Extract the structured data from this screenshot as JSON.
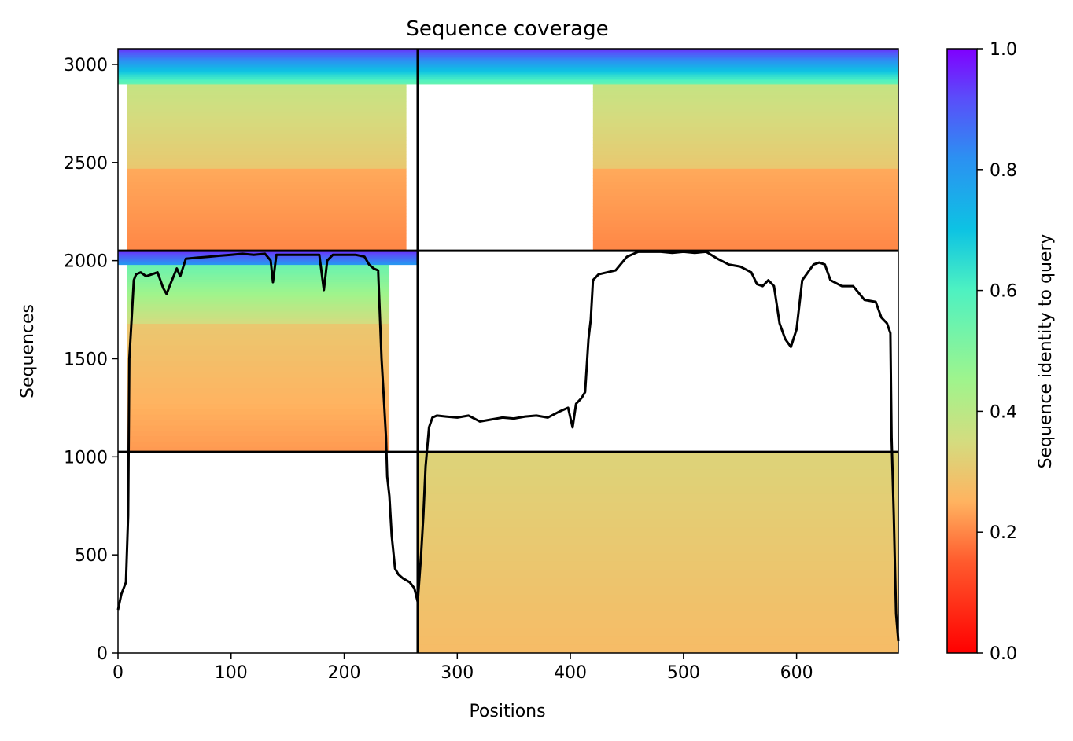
{
  "chart_data": {
    "type": "heatmap",
    "title": "Sequence coverage",
    "xlabel": "Positions",
    "ylabel": "Sequences",
    "xlim": [
      0,
      690
    ],
    "ylim": [
      0,
      3080
    ],
    "xticks": [
      0,
      100,
      200,
      300,
      400,
      500,
      600
    ],
    "yticks": [
      0,
      500,
      1000,
      1500,
      2000,
      2500,
      3000
    ],
    "grid": false,
    "colormap": "rainbow",
    "colorbar": {
      "label": "Sequence identity to query",
      "range": [
        0,
        1
      ],
      "ticks": [
        0.0,
        0.2,
        0.4,
        0.6,
        0.8,
        1.0
      ],
      "tick_labels": [
        "0.0",
        "0.2",
        "0.4",
        "0.6",
        "0.8",
        "1.0"
      ]
    },
    "block_boundaries": {
      "x": [
        265
      ],
      "y": [
        1025,
        2050
      ]
    },
    "coverage_blocks": [
      {
        "x": [
          8,
          240
        ],
        "y": [
          1025,
          1680
        ],
        "identity": [
          0.22,
          0.3
        ]
      },
      {
        "x": [
          8,
          240
        ],
        "y": [
          1680,
          1980
        ],
        "identity": [
          0.35,
          0.55
        ]
      },
      {
        "x": [
          0,
          265
        ],
        "y": [
          1980,
          2050
        ],
        "identity": [
          0.8,
          0.95
        ]
      },
      {
        "x": [
          8,
          255
        ],
        "y": [
          2050,
          2470
        ],
        "identity": [
          0.2,
          0.24
        ]
      },
      {
        "x": [
          8,
          255
        ],
        "y": [
          2470,
          2900
        ],
        "identity": [
          0.3,
          0.38
        ]
      },
      {
        "x": [
          0,
          265
        ],
        "y": [
          2900,
          3080
        ],
        "identity": [
          0.55,
          0.95
        ]
      },
      {
        "x": [
          265,
          690
        ],
        "y": [
          0,
          1025
        ],
        "identity": [
          0.27,
          0.33
        ]
      },
      {
        "x": [
          420,
          690
        ],
        "y": [
          2050,
          2470
        ],
        "identity": [
          0.2,
          0.24
        ]
      },
      {
        "x": [
          420,
          690
        ],
        "y": [
          2470,
          2900
        ],
        "identity": [
          0.3,
          0.38
        ]
      },
      {
        "x": [
          265,
          690
        ],
        "y": [
          2900,
          3080
        ],
        "identity": [
          0.55,
          0.95
        ]
      }
    ],
    "coverage_line": {
      "x": [
        0,
        3,
        7,
        9,
        10,
        12,
        14,
        16,
        20,
        25,
        30,
        35,
        40,
        43,
        47,
        52,
        55,
        60,
        70,
        80,
        90,
        100,
        110,
        120,
        130,
        135,
        137,
        140,
        150,
        160,
        170,
        178,
        182,
        185,
        190,
        200,
        210,
        218,
        222,
        226,
        230,
        233,
        235,
        237,
        238,
        240,
        242,
        245,
        248,
        252,
        258,
        262,
        265,
        268,
        270,
        272,
        275,
        278,
        282,
        290,
        300,
        310,
        320,
        330,
        340,
        350,
        360,
        370,
        380,
        390,
        398,
        402,
        405,
        410,
        413,
        416,
        418,
        420,
        425,
        440,
        450,
        460,
        470,
        480,
        490,
        500,
        510,
        520,
        530,
        540,
        550,
        560,
        565,
        570,
        575,
        580,
        585,
        590,
        595,
        600,
        605,
        610,
        615,
        620,
        625,
        630,
        640,
        650,
        660,
        670,
        675,
        680,
        683,
        684,
        685,
        686,
        688,
        690
      ],
      "y": [
        220,
        300,
        360,
        700,
        1500,
        1700,
        1900,
        1930,
        1940,
        1920,
        1930,
        1940,
        1860,
        1830,
        1890,
        1960,
        1920,
        2010,
        2015,
        2020,
        2025,
        2030,
        2035,
        2030,
        2035,
        2000,
        1890,
        2030,
        2030,
        2030,
        2030,
        2030,
        1850,
        2000,
        2030,
        2030,
        2030,
        2020,
        1980,
        1960,
        1950,
        1500,
        1300,
        1100,
        900,
        800,
        600,
        430,
        400,
        380,
        360,
        330,
        260,
        500,
        700,
        950,
        1150,
        1200,
        1210,
        1205,
        1200,
        1210,
        1180,
        1190,
        1200,
        1195,
        1205,
        1210,
        1200,
        1230,
        1250,
        1150,
        1270,
        1300,
        1330,
        1600,
        1700,
        1900,
        1930,
        1950,
        2020,
        2045,
        2045,
        2045,
        2040,
        2045,
        2040,
        2045,
        2010,
        1980,
        1970,
        1940,
        1880,
        1870,
        1900,
        1870,
        1680,
        1600,
        1560,
        1650,
        1900,
        1940,
        1980,
        1990,
        1980,
        1900,
        1870,
        1870,
        1800,
        1790,
        1710,
        1680,
        1630,
        1100,
        900,
        700,
        200,
        60
      ]
    }
  }
}
